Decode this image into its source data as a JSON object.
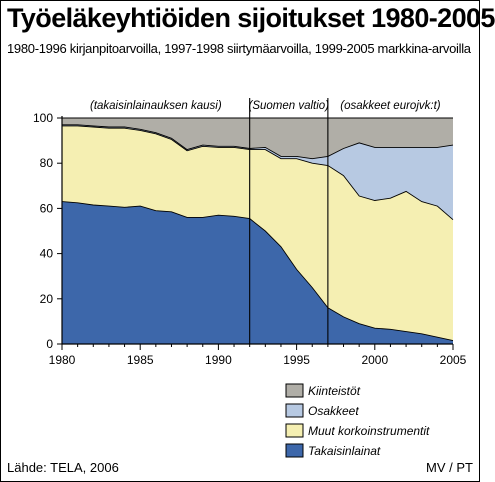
{
  "header": {
    "title": "Työeläkeyhtiöiden sijoitukset 1980-2005",
    "subtitle": "1980-1996 kirjanpitoarvoilla, 1997-1998 siirtymäarvoilla, 1999-2005 markkina-arvoilla"
  },
  "footer": {
    "source": "Lähde: TELA, 2006",
    "credit": "MV / PT"
  },
  "colors": {
    "takaisinlainat": "#3d67aa",
    "muut": "#f5efb2",
    "osakkeet": "#b7c9e2",
    "kiinteistot": "#b0aea7",
    "line": "#000000"
  },
  "chart_data": {
    "type": "area",
    "stacked": true,
    "x": [
      1980,
      1981,
      1982,
      1983,
      1984,
      1985,
      1986,
      1987,
      1988,
      1989,
      1990,
      1991,
      1992,
      1993,
      1994,
      1995,
      1996,
      1997,
      1998,
      1999,
      2000,
      2001,
      2002,
      2003,
      2004,
      2005
    ],
    "xticks": [
      "1980",
      "1985",
      "1990",
      "1995",
      "2000",
      "2005"
    ],
    "yticks": [
      "0",
      "20",
      "40",
      "60",
      "80",
      "100"
    ],
    "ylim": [
      0,
      100
    ],
    "xlim": [
      1980,
      2005
    ],
    "legend": [
      "Kiinteistöt",
      "Osakkeet",
      "Muut korkoinstrumentit",
      "Takaisinlainat"
    ],
    "periods": [
      {
        "label": "(takaisinlainauksen kausi)",
        "start": 1980,
        "end": 1992
      },
      {
        "label": "(Suomen valtio)",
        "start": 1992,
        "end": 1997
      },
      {
        "label": "(osakkeet eurojvk:t)",
        "start": 1997,
        "end": 2005
      }
    ],
    "series": [
      {
        "name": "Takaisinlainat",
        "values": [
          63,
          62.5,
          61.5,
          61,
          60.5,
          61,
          59,
          58.5,
          56,
          56,
          57,
          56.5,
          55.5,
          50,
          43,
          33,
          25,
          16,
          12,
          9,
          7,
          6.5,
          5.5,
          4.5,
          3,
          1.5
        ]
      },
      {
        "name": "Muut korkoinstrumentit",
        "values": [
          33.5,
          34,
          34.5,
          34.5,
          35,
          33.5,
          34,
          32,
          29.5,
          31.5,
          30,
          30.5,
          30.5,
          36,
          39,
          49,
          55,
          63,
          62.5,
          56.5,
          56.5,
          58,
          62,
          58.5,
          58,
          53.5
        ]
      },
      {
        "name": "Osakkeet",
        "values": [
          0.5,
          0.5,
          0.5,
          0.5,
          0.5,
          0.5,
          0.5,
          0.5,
          0.5,
          0.5,
          0.5,
          0.5,
          0.5,
          1,
          1,
          1,
          2,
          4,
          12,
          23.5,
          23.5,
          22.5,
          19.5,
          24,
          26,
          33
        ]
      },
      {
        "name": "Kiinteistöt",
        "values": [
          3,
          3,
          3.5,
          4,
          4,
          5,
          6.5,
          9,
          14,
          12,
          12.5,
          12.5,
          13.5,
          13,
          17,
          17,
          18,
          17,
          13.5,
          11,
          13,
          13,
          13,
          13,
          13,
          12
        ]
      }
    ]
  }
}
